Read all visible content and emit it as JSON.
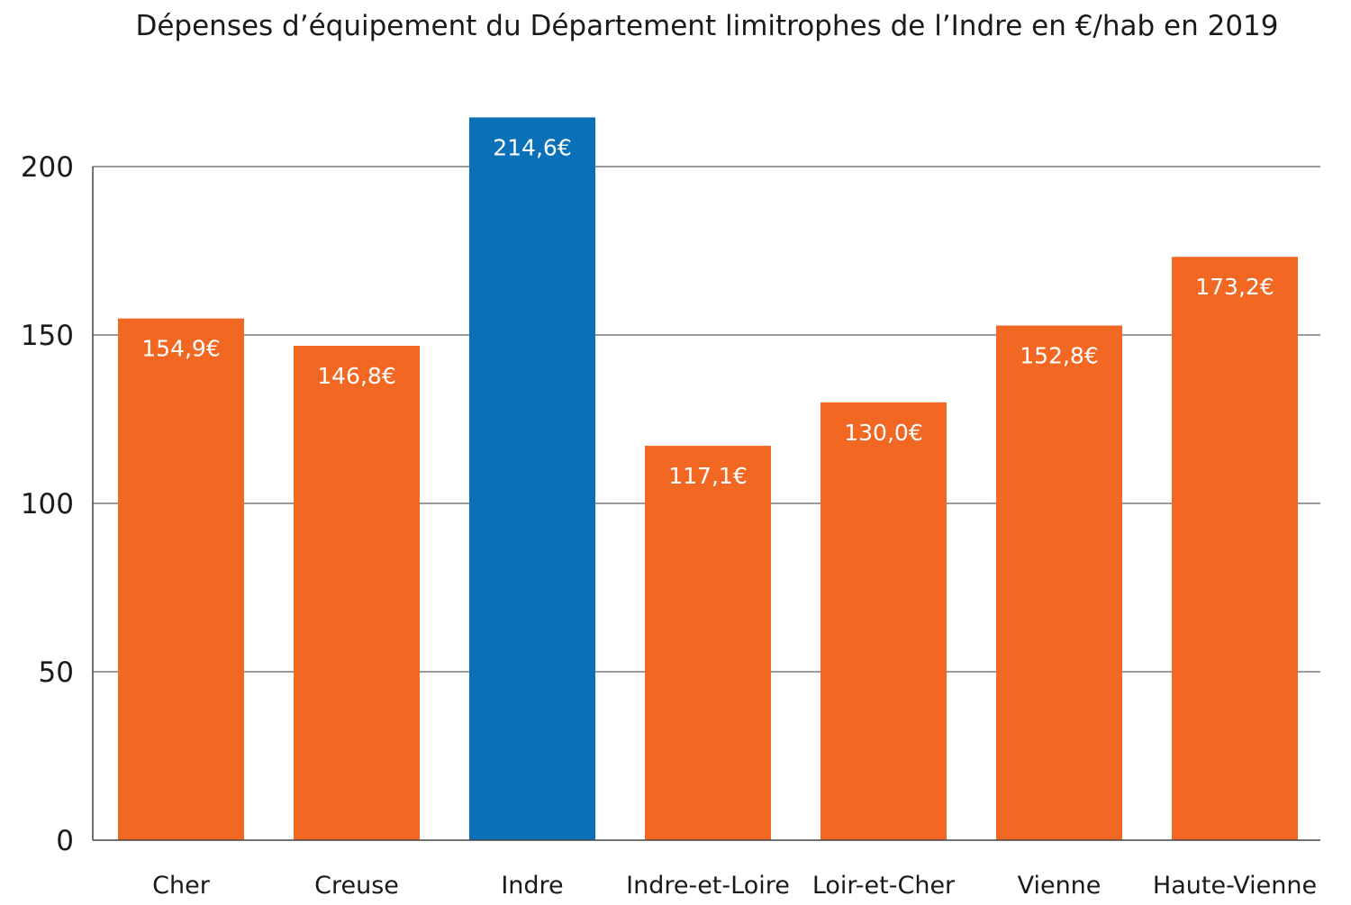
{
  "chart_data": {
    "type": "bar",
    "title": "Dépenses d’équipement du Département limitrophes de l’Indre en €/hab en 2019",
    "categories": [
      "Cher",
      "Creuse",
      "Indre",
      "Indre-et-Loire",
      "Loir-et-Cher",
      "Vienne",
      "Haute-Vienne"
    ],
    "values": [
      154.9,
      146.8,
      214.6,
      117.1,
      130.0,
      152.8,
      173.2
    ],
    "data_labels": [
      "154,9€",
      "146,8€",
      "214,6€",
      "117,1€",
      "130,0€",
      "152,8€",
      "173,2€"
    ],
    "highlight_index": 2,
    "colors": {
      "default": "#f26722",
      "highlight": "#0a70b8",
      "grid": "#7a7a7a"
    },
    "ylim": [
      0,
      200
    ],
    "yticks": [
      0,
      50,
      100,
      150,
      200
    ],
    "grid": true,
    "xlabel": "",
    "ylabel": ""
  }
}
